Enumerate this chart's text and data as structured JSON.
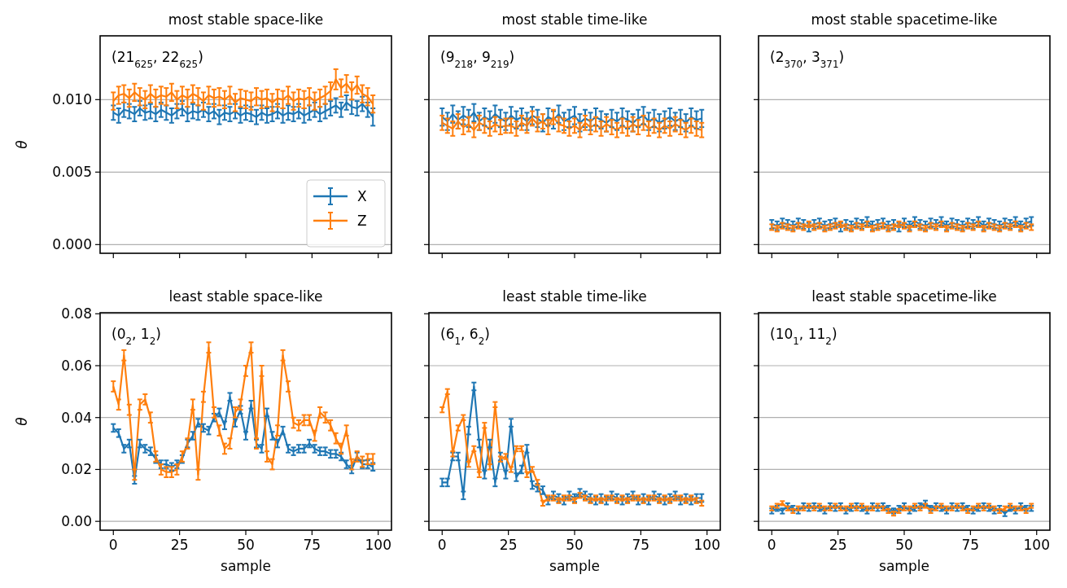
{
  "chart_data": [
    {
      "type": "line",
      "title": "most stable space-like",
      "ylabel": "θ",
      "annotations": [
        "(21$_{625}$, 22$_{625}$)"
      ],
      "x": [
        0,
        2,
        4,
        6,
        8,
        10,
        12,
        14,
        16,
        18,
        20,
        22,
        24,
        26,
        28,
        30,
        32,
        34,
        36,
        38,
        40,
        42,
        44,
        46,
        48,
        50,
        52,
        54,
        56,
        58,
        60,
        62,
        64,
        66,
        68,
        70,
        72,
        74,
        76,
        78,
        80,
        82,
        84,
        86,
        88,
        90,
        92,
        94,
        96,
        98
      ],
      "xlim": [
        -5,
        105
      ],
      "xticks": [
        0,
        25,
        50,
        75,
        100
      ],
      "ylim": [
        -0.0006,
        0.0144
      ],
      "yticks": [
        {
          "value": 0,
          "label": "0.000"
        },
        {
          "value": 0.005,
          "label": "0.005"
        },
        {
          "value": 0.01,
          "label": "0.010"
        }
      ],
      "grid": "y",
      "legend": "bottom right",
      "marker": "none",
      "tick_labels": "y",
      "series": [
        {
          "name": "X",
          "color": "#1f77b4",
          "values": [
            0.0091,
            0.0089,
            0.0093,
            0.0092,
            0.009,
            0.0094,
            0.0091,
            0.0092,
            0.009,
            0.0093,
            0.0091,
            0.0089,
            0.0092,
            0.0094,
            0.009,
            0.0092,
            0.0091,
            0.0093,
            0.009,
            0.0092,
            0.0088,
            0.0091,
            0.009,
            0.0092,
            0.0089,
            0.0091,
            0.009,
            0.0088,
            0.0091,
            0.0089,
            0.009,
            0.0092,
            0.0089,
            0.0091,
            0.009,
            0.0092,
            0.0089,
            0.0091,
            0.0093,
            0.009,
            0.0092,
            0.0094,
            0.0096,
            0.0093,
            0.0098,
            0.0095,
            0.0094,
            0.0097,
            0.0093,
            0.0088
          ],
          "errors": [
            0.0005,
            0.0005,
            0.0005,
            0.0005,
            0.0005,
            0.0005,
            0.0005,
            0.0005,
            0.0005,
            0.0005,
            0.0005,
            0.0005,
            0.0005,
            0.0005,
            0.0005,
            0.0005,
            0.0005,
            0.0005,
            0.0005,
            0.0005,
            0.0005,
            0.0005,
            0.0005,
            0.0005,
            0.0005,
            0.0005,
            0.0005,
            0.0005,
            0.0005,
            0.0005,
            0.0005,
            0.0005,
            0.0005,
            0.0005,
            0.0005,
            0.0005,
            0.0005,
            0.0005,
            0.0005,
            0.0005,
            0.0005,
            0.0005,
            0.0005,
            0.0005,
            0.0005,
            0.0005,
            0.0005,
            0.0005,
            0.0005,
            0.0006
          ]
        },
        {
          "name": "Z",
          "color": "#ff7f0e",
          "values": [
            0.0099,
            0.0103,
            0.0104,
            0.0101,
            0.0105,
            0.0102,
            0.01,
            0.0104,
            0.0101,
            0.0103,
            0.0102,
            0.0105,
            0.01,
            0.0103,
            0.0101,
            0.0104,
            0.0102,
            0.0099,
            0.0103,
            0.0101,
            0.0102,
            0.01,
            0.0103,
            0.0098,
            0.0101,
            0.01,
            0.0099,
            0.0102,
            0.01,
            0.0101,
            0.0098,
            0.0101,
            0.01,
            0.0103,
            0.0099,
            0.0101,
            0.01,
            0.0102,
            0.0099,
            0.0101,
            0.0103,
            0.0106,
            0.0114,
            0.0108,
            0.0111,
            0.0106,
            0.011,
            0.0104,
            0.0102,
            0.0097
          ],
          "errors": [
            0.0006,
            0.0006,
            0.0006,
            0.0006,
            0.0006,
            0.0006,
            0.0006,
            0.0006,
            0.0006,
            0.0006,
            0.0006,
            0.0006,
            0.0006,
            0.0006,
            0.0006,
            0.0006,
            0.0006,
            0.0006,
            0.0006,
            0.0006,
            0.0006,
            0.0006,
            0.0006,
            0.0006,
            0.0006,
            0.0006,
            0.0006,
            0.0006,
            0.0006,
            0.0006,
            0.0006,
            0.0006,
            0.0006,
            0.0006,
            0.0006,
            0.0006,
            0.0006,
            0.0006,
            0.0006,
            0.0006,
            0.0006,
            0.0006,
            0.0007,
            0.0006,
            0.0006,
            0.0006,
            0.0006,
            0.0006,
            0.0006,
            0.0006
          ]
        }
      ]
    },
    {
      "type": "line",
      "title": "most stable time-like",
      "annotations": [
        "(9$_{218}$, 9$_{219}$)"
      ],
      "x": [
        0,
        2,
        4,
        6,
        8,
        10,
        12,
        14,
        16,
        18,
        20,
        22,
        24,
        26,
        28,
        30,
        32,
        34,
        36,
        38,
        40,
        42,
        44,
        46,
        48,
        50,
        52,
        54,
        56,
        58,
        60,
        62,
        64,
        66,
        68,
        70,
        72,
        74,
        76,
        78,
        80,
        82,
        84,
        86,
        88,
        90,
        92,
        94,
        96,
        98
      ],
      "xlim": [
        -5,
        105
      ],
      "xticks": [
        0,
        25,
        50,
        75,
        100
      ],
      "ylim": [
        -0.0006,
        0.0144
      ],
      "yticks": [
        0,
        0.005,
        0.01
      ],
      "grid": "y",
      "marker": "none",
      "tick_labels": false,
      "series": [
        {
          "color": "#1f77b4",
          "values": [
            0.0088,
            0.0085,
            0.009,
            0.0086,
            0.0089,
            0.0087,
            0.0091,
            0.0085,
            0.0088,
            0.0086,
            0.009,
            0.0087,
            0.0085,
            0.0089,
            0.0086,
            0.0088,
            0.0085,
            0.0089,
            0.0087,
            0.0084,
            0.0088,
            0.0086,
            0.009,
            0.0085,
            0.0087,
            0.0089,
            0.0084,
            0.0087,
            0.0085,
            0.0088,
            0.0086,
            0.0084,
            0.0087,
            0.0085,
            0.0088,
            0.0086,
            0.0084,
            0.0087,
            0.0089,
            0.0085,
            0.0087,
            0.0084,
            0.0086,
            0.0088,
            0.0085,
            0.0087,
            0.0084,
            0.0088,
            0.0086,
            0.0087
          ],
          "errors": [
            0.0006,
            0.0006,
            0.0006,
            0.0006,
            0.0006,
            0.0006,
            0.0006,
            0.0006,
            0.0006,
            0.0006,
            0.0006,
            0.0006,
            0.0006,
            0.0006,
            0.0006,
            0.0006,
            0.0006,
            0.0006,
            0.0006,
            0.0006,
            0.0006,
            0.0006,
            0.0006,
            0.0006,
            0.0006,
            0.0006,
            0.0006,
            0.0006,
            0.0006,
            0.0006,
            0.0006,
            0.0006,
            0.0006,
            0.0006,
            0.0006,
            0.0006,
            0.0006,
            0.0006,
            0.0006,
            0.0006,
            0.0006,
            0.0006,
            0.0006,
            0.0006,
            0.0006,
            0.0006,
            0.0006,
            0.0006,
            0.0006,
            0.0006
          ]
        },
        {
          "color": "#ff7f0e",
          "values": [
            0.0084,
            0.0082,
            0.008,
            0.0085,
            0.0081,
            0.0083,
            0.0079,
            0.0084,
            0.0082,
            0.008,
            0.0083,
            0.0081,
            0.0082,
            0.0082,
            0.008,
            0.0084,
            0.0082,
            0.0087,
            0.0083,
            0.0085,
            0.0081,
            0.0088,
            0.0083,
            0.0082,
            0.008,
            0.0082,
            0.0079,
            0.0084,
            0.0081,
            0.0083,
            0.008,
            0.0083,
            0.0081,
            0.0079,
            0.0082,
            0.008,
            0.0083,
            0.0081,
            0.0084,
            0.008,
            0.0082,
            0.0079,
            0.0082,
            0.008,
            0.0083,
            0.0081,
            0.0079,
            0.0082,
            0.008,
            0.0079
          ],
          "errors": [
            0.0005,
            0.0005,
            0.0005,
            0.0005,
            0.0005,
            0.0005,
            0.0005,
            0.0005,
            0.0005,
            0.0005,
            0.0005,
            0.0005,
            0.0005,
            0.0005,
            0.0005,
            0.0005,
            0.0005,
            0.0005,
            0.0005,
            0.0005,
            0.0005,
            0.0005,
            0.0005,
            0.0005,
            0.0005,
            0.0005,
            0.0005,
            0.0005,
            0.0005,
            0.0005,
            0.0005,
            0.0005,
            0.0005,
            0.0005,
            0.0005,
            0.0005,
            0.0005,
            0.0005,
            0.0005,
            0.0005,
            0.0005,
            0.0005,
            0.0005,
            0.0005,
            0.0005,
            0.0005,
            0.0005,
            0.0005,
            0.0005,
            0.0005
          ]
        }
      ]
    },
    {
      "type": "line",
      "title": "most stable spacetime-like",
      "annotations": [
        "(2$_{370}$, 3$_{371}$)"
      ],
      "x": [
        0,
        2,
        4,
        6,
        8,
        10,
        12,
        14,
        16,
        18,
        20,
        22,
        24,
        26,
        28,
        30,
        32,
        34,
        36,
        38,
        40,
        42,
        44,
        46,
        48,
        50,
        52,
        54,
        56,
        58,
        60,
        62,
        64,
        66,
        68,
        70,
        72,
        74,
        76,
        78,
        80,
        82,
        84,
        86,
        88,
        90,
        92,
        94,
        96,
        98
      ],
      "xlim": [
        -5,
        105
      ],
      "xticks": [
        0,
        25,
        50,
        75,
        100
      ],
      "ylim": [
        -0.0006,
        0.0144
      ],
      "yticks": [
        0,
        0.005,
        0.01
      ],
      "grid": "y",
      "marker": "none",
      "tick_labels": false,
      "series": [
        {
          "color": "#1f77b4",
          "values": [
            0.0014,
            0.0013,
            0.0015,
            0.0014,
            0.0013,
            0.0015,
            0.0014,
            0.0012,
            0.0014,
            0.0015,
            0.0013,
            0.0014,
            0.0015,
            0.0012,
            0.0014,
            0.0013,
            0.0015,
            0.0014,
            0.0016,
            0.0013,
            0.0014,
            0.0015,
            0.0013,
            0.0014,
            0.0012,
            0.0015,
            0.0013,
            0.0016,
            0.0014,
            0.0013,
            0.0015,
            0.0014,
            0.0016,
            0.0013,
            0.0015,
            0.0014,
            0.0013,
            0.0015,
            0.0014,
            0.0016,
            0.0013,
            0.0015,
            0.0014,
            0.0013,
            0.0015,
            0.0014,
            0.0016,
            0.0013,
            0.0015,
            0.0016
          ],
          "errors": [
            0.0003,
            0.0003,
            0.0003,
            0.0003,
            0.0003,
            0.0003,
            0.0003,
            0.0003,
            0.0003,
            0.0003,
            0.0003,
            0.0003,
            0.0003,
            0.0003,
            0.0003,
            0.0003,
            0.0003,
            0.0003,
            0.0003,
            0.0003,
            0.0003,
            0.0003,
            0.0003,
            0.0003,
            0.0003,
            0.0003,
            0.0003,
            0.0003,
            0.0003,
            0.0003,
            0.0003,
            0.0003,
            0.0003,
            0.0003,
            0.0003,
            0.0003,
            0.0003,
            0.0003,
            0.0003,
            0.0003,
            0.0003,
            0.0003,
            0.0003,
            0.0003,
            0.0003,
            0.0003,
            0.0003,
            0.0003,
            0.0003,
            0.0003
          ]
        },
        {
          "color": "#ff7f0e",
          "values": [
            0.0012,
            0.0011,
            0.0013,
            0.0012,
            0.0011,
            0.0013,
            0.0012,
            0.0014,
            0.0012,
            0.0013,
            0.0011,
            0.0012,
            0.0013,
            0.0014,
            0.0012,
            0.0011,
            0.0013,
            0.0012,
            0.0014,
            0.0011,
            0.0012,
            0.0013,
            0.0011,
            0.0012,
            0.0014,
            0.0013,
            0.0011,
            0.0014,
            0.0012,
            0.0011,
            0.0013,
            0.0012,
            0.0014,
            0.0011,
            0.0013,
            0.0012,
            0.0011,
            0.0013,
            0.0012,
            0.0014,
            0.0011,
            0.0013,
            0.0012,
            0.0011,
            0.0013,
            0.0012,
            0.0014,
            0.0011,
            0.0013,
            0.0012
          ],
          "errors": [
            0.0002,
            0.0002,
            0.0002,
            0.0002,
            0.0002,
            0.0002,
            0.0002,
            0.0002,
            0.0002,
            0.0002,
            0.0002,
            0.0002,
            0.0002,
            0.0002,
            0.0002,
            0.0002,
            0.0002,
            0.0002,
            0.0002,
            0.0002,
            0.0002,
            0.0002,
            0.0002,
            0.0002,
            0.0002,
            0.0002,
            0.0002,
            0.0002,
            0.0002,
            0.0002,
            0.0002,
            0.0002,
            0.0002,
            0.0002,
            0.0002,
            0.0002,
            0.0002,
            0.0002,
            0.0002,
            0.0002,
            0.0002,
            0.0002,
            0.0002,
            0.0002,
            0.0002,
            0.0002,
            0.0002,
            0.0002,
            0.0002,
            0.0002
          ]
        }
      ]
    },
    {
      "type": "line",
      "title": "least stable space-like",
      "xlabel": "sample",
      "ylabel": "θ",
      "annotations": [
        "(0$_{2}$, 1$_{2}$)"
      ],
      "x": [
        0,
        2,
        4,
        6,
        8,
        10,
        12,
        14,
        16,
        18,
        20,
        22,
        24,
        26,
        28,
        30,
        32,
        34,
        36,
        38,
        40,
        42,
        44,
        46,
        48,
        50,
        52,
        54,
        56,
        58,
        60,
        62,
        64,
        66,
        68,
        70,
        72,
        74,
        76,
        78,
        80,
        82,
        84,
        86,
        88,
        90,
        92,
        94,
        96,
        98
      ],
      "xlim": [
        -5,
        105
      ],
      "xticks": [
        0,
        25,
        50,
        75,
        100
      ],
      "ylim": [
        -0.0034,
        0.0804
      ],
      "yticks": [
        {
          "value": 0,
          "label": "0.00"
        },
        {
          "value": 0.02,
          "label": "0.02"
        },
        {
          "value": 0.04,
          "label": "0.04"
        },
        {
          "value": 0.06,
          "label": "0.06"
        },
        {
          "value": 0.08,
          "label": "0.08"
        }
      ],
      "grid": "y",
      "marker": "none",
      "series": [
        {
          "color": "#1f77b4",
          "values": [
            0.036,
            0.034,
            0.028,
            0.03,
            0.016,
            0.03,
            0.028,
            0.027,
            0.024,
            0.022,
            0.022,
            0.021,
            0.022,
            0.024,
            0.03,
            0.033,
            0.038,
            0.036,
            0.035,
            0.04,
            0.042,
            0.037,
            0.048,
            0.038,
            0.043,
            0.033,
            0.045,
            0.03,
            0.028,
            0.042,
            0.033,
            0.03,
            0.035,
            0.028,
            0.027,
            0.028,
            0.028,
            0.03,
            0.028,
            0.027,
            0.027,
            0.026,
            0.026,
            0.025,
            0.022,
            0.02,
            0.025,
            0.022,
            0.022,
            0.021
          ],
          "errors": [
            0.0015,
            0.0015,
            0.0015,
            0.0015,
            0.0015,
            0.0015,
            0.0015,
            0.0015,
            0.0015,
            0.0015,
            0.0015,
            0.0015,
            0.0015,
            0.0015,
            0.0015,
            0.0015,
            0.0015,
            0.0015,
            0.0015,
            0.0015,
            0.0015,
            0.0015,
            0.0015,
            0.0015,
            0.0015,
            0.0015,
            0.0015,
            0.0015,
            0.0015,
            0.0015,
            0.0015,
            0.0015,
            0.0015,
            0.0015,
            0.0015,
            0.0015,
            0.0015,
            0.0015,
            0.0015,
            0.0015,
            0.0015,
            0.0015,
            0.0015,
            0.0015,
            0.0015,
            0.0015,
            0.0015,
            0.0015,
            0.0015,
            0.0015
          ]
        },
        {
          "color": "#ff7f0e",
          "values": [
            0.052,
            0.045,
            0.064,
            0.043,
            0.018,
            0.045,
            0.047,
            0.04,
            0.025,
            0.02,
            0.019,
            0.019,
            0.02,
            0.025,
            0.03,
            0.045,
            0.018,
            0.048,
            0.067,
            0.042,
            0.035,
            0.028,
            0.03,
            0.042,
            0.045,
            0.058,
            0.067,
            0.03,
            0.058,
            0.025,
            0.022,
            0.035,
            0.064,
            0.052,
            0.038,
            0.037,
            0.039,
            0.039,
            0.033,
            0.042,
            0.04,
            0.037,
            0.032,
            0.028,
            0.035,
            0.022,
            0.025,
            0.023,
            0.024,
            0.024
          ],
          "errors": [
            0.002,
            0.002,
            0.002,
            0.002,
            0.002,
            0.002,
            0.002,
            0.002,
            0.002,
            0.002,
            0.002,
            0.002,
            0.002,
            0.002,
            0.002,
            0.002,
            0.002,
            0.002,
            0.002,
            0.002,
            0.002,
            0.002,
            0.002,
            0.002,
            0.002,
            0.002,
            0.002,
            0.002,
            0.002,
            0.002,
            0.002,
            0.002,
            0.002,
            0.002,
            0.002,
            0.002,
            0.002,
            0.002,
            0.002,
            0.002,
            0.002,
            0.002,
            0.002,
            0.002,
            0.002,
            0.002,
            0.002,
            0.002,
            0.002,
            0.002
          ]
        }
      ]
    },
    {
      "type": "line",
      "title": "least stable time-like",
      "xlabel": "sample",
      "annotations": [
        "(6$_{1}$, 6$_{2}$)"
      ],
      "x": [
        0,
        2,
        4,
        6,
        8,
        10,
        12,
        14,
        16,
        18,
        20,
        22,
        24,
        26,
        28,
        30,
        32,
        34,
        36,
        38,
        40,
        42,
        44,
        46,
        48,
        50,
        52,
        54,
        56,
        58,
        60,
        62,
        64,
        66,
        68,
        70,
        72,
        74,
        76,
        78,
        80,
        82,
        84,
        86,
        88,
        90,
        92,
        94,
        96,
        98
      ],
      "xlim": [
        -5,
        105
      ],
      "xticks": [
        0,
        25,
        50,
        75,
        100
      ],
      "ylim": [
        -0.0034,
        0.0804
      ],
      "yticks": [
        0,
        0.02,
        0.04,
        0.06,
        0.08
      ],
      "grid": "y",
      "marker": "none",
      "tick_labels": "x",
      "series": [
        {
          "color": "#1f77b4",
          "values": [
            0.015,
            0.015,
            0.025,
            0.025,
            0.01,
            0.035,
            0.052,
            0.03,
            0.018,
            0.03,
            0.015,
            0.025,
            0.018,
            0.038,
            0.017,
            0.02,
            0.028,
            0.014,
            0.013,
            0.012,
            0.008,
            0.01,
            0.009,
            0.008,
            0.01,
            0.009,
            0.011,
            0.01,
            0.009,
            0.008,
            0.009,
            0.008,
            0.01,
            0.009,
            0.008,
            0.009,
            0.01,
            0.008,
            0.009,
            0.008,
            0.01,
            0.009,
            0.008,
            0.009,
            0.01,
            0.008,
            0.009,
            0.008,
            0.009,
            0.009
          ],
          "errors": [
            0.0015,
            0.0015,
            0.0015,
            0.0015,
            0.0015,
            0.0015,
            0.0015,
            0.0015,
            0.0015,
            0.0015,
            0.0015,
            0.0015,
            0.0015,
            0.0015,
            0.0015,
            0.0015,
            0.0015,
            0.0015,
            0.0015,
            0.0015,
            0.0015,
            0.0015,
            0.0015,
            0.0015,
            0.0015,
            0.0015,
            0.0015,
            0.0015,
            0.0015,
            0.0015,
            0.0015,
            0.0015,
            0.0015,
            0.0015,
            0.0015,
            0.0015,
            0.0015,
            0.0015,
            0.0015,
            0.0015,
            0.0015,
            0.0015,
            0.0015,
            0.0015,
            0.0015,
            0.0015,
            0.0015,
            0.0015,
            0.0015,
            0.0015
          ]
        },
        {
          "color": "#ff7f0e",
          "values": [
            0.043,
            0.05,
            0.026,
            0.036,
            0.04,
            0.022,
            0.028,
            0.018,
            0.037,
            0.021,
            0.045,
            0.024,
            0.025,
            0.02,
            0.028,
            0.028,
            0.018,
            0.02,
            0.015,
            0.007,
            0.009,
            0.009,
            0.008,
            0.009,
            0.009,
            0.008,
            0.01,
            0.009,
            0.008,
            0.009,
            0.008,
            0.009,
            0.009,
            0.008,
            0.009,
            0.008,
            0.009,
            0.009,
            0.008,
            0.009,
            0.009,
            0.008,
            0.009,
            0.008,
            0.009,
            0.009,
            0.008,
            0.009,
            0.008,
            0.007
          ],
          "errors": [
            0.001,
            0.001,
            0.001,
            0.001,
            0.001,
            0.001,
            0.001,
            0.001,
            0.001,
            0.001,
            0.001,
            0.001,
            0.001,
            0.001,
            0.001,
            0.001,
            0.001,
            0.001,
            0.001,
            0.001,
            0.001,
            0.001,
            0.001,
            0.001,
            0.001,
            0.001,
            0.001,
            0.001,
            0.001,
            0.001,
            0.001,
            0.001,
            0.001,
            0.001,
            0.001,
            0.001,
            0.001,
            0.001,
            0.001,
            0.001,
            0.001,
            0.001,
            0.001,
            0.001,
            0.001,
            0.001,
            0.001,
            0.001,
            0.001,
            0.001
          ]
        }
      ]
    },
    {
      "type": "line",
      "title": "least stable spacetime-like",
      "xlabel": "sample",
      "annotations": [
        "(10$_{1}$, 11$_{2}$)"
      ],
      "x": [
        0,
        2,
        4,
        6,
        8,
        10,
        12,
        14,
        16,
        18,
        20,
        22,
        24,
        26,
        28,
        30,
        32,
        34,
        36,
        38,
        40,
        42,
        44,
        46,
        48,
        50,
        52,
        54,
        56,
        58,
        60,
        62,
        64,
        66,
        68,
        70,
        72,
        74,
        76,
        78,
        80,
        82,
        84,
        86,
        88,
        90,
        92,
        94,
        96,
        98
      ],
      "xlim": [
        -5,
        105
      ],
      "xticks": [
        0,
        25,
        50,
        75,
        100
      ],
      "ylim": [
        -0.0034,
        0.0804
      ],
      "yticks": [
        0,
        0.02,
        0.04,
        0.06,
        0.08
      ],
      "grid": "y",
      "marker": "none",
      "tick_labels": "x",
      "series": [
        {
          "color": "#1f77b4",
          "values": [
            0.004,
            0.005,
            0.004,
            0.006,
            0.005,
            0.004,
            0.006,
            0.005,
            0.006,
            0.005,
            0.004,
            0.006,
            0.005,
            0.006,
            0.004,
            0.005,
            0.006,
            0.005,
            0.004,
            0.006,
            0.005,
            0.006,
            0.005,
            0.004,
            0.005,
            0.006,
            0.004,
            0.005,
            0.006,
            0.007,
            0.005,
            0.006,
            0.005,
            0.004,
            0.006,
            0.005,
            0.006,
            0.005,
            0.004,
            0.005,
            0.006,
            0.005,
            0.004,
            0.005,
            0.003,
            0.005,
            0.004,
            0.006,
            0.005,
            0.005
          ],
          "errors": [
            0.001,
            0.001,
            0.001,
            0.001,
            0.001,
            0.001,
            0.001,
            0.001,
            0.001,
            0.001,
            0.001,
            0.001,
            0.001,
            0.001,
            0.001,
            0.001,
            0.001,
            0.001,
            0.001,
            0.001,
            0.001,
            0.001,
            0.001,
            0.001,
            0.001,
            0.001,
            0.001,
            0.001,
            0.001,
            0.001,
            0.001,
            0.001,
            0.001,
            0.001,
            0.001,
            0.001,
            0.001,
            0.001,
            0.001,
            0.001,
            0.001,
            0.001,
            0.001,
            0.001,
            0.001,
            0.001,
            0.001,
            0.001,
            0.001,
            0.001
          ]
        },
        {
          "color": "#ff7f0e",
          "values": [
            0.005,
            0.006,
            0.007,
            0.005,
            0.004,
            0.005,
            0.005,
            0.006,
            0.005,
            0.006,
            0.005,
            0.005,
            0.006,
            0.005,
            0.005,
            0.006,
            0.005,
            0.006,
            0.005,
            0.005,
            0.006,
            0.005,
            0.004,
            0.003,
            0.004,
            0.005,
            0.005,
            0.006,
            0.005,
            0.006,
            0.004,
            0.005,
            0.006,
            0.005,
            0.005,
            0.006,
            0.005,
            0.004,
            0.005,
            0.006,
            0.005,
            0.006,
            0.005,
            0.004,
            0.005,
            0.006,
            0.005,
            0.005,
            0.004,
            0.006
          ],
          "errors": [
            0.0008,
            0.0008,
            0.0008,
            0.0008,
            0.0008,
            0.0008,
            0.0008,
            0.0008,
            0.0008,
            0.0008,
            0.0008,
            0.0008,
            0.0008,
            0.0008,
            0.0008,
            0.0008,
            0.0008,
            0.0008,
            0.0008,
            0.0008,
            0.0008,
            0.0008,
            0.0008,
            0.0008,
            0.0008,
            0.0008,
            0.0008,
            0.0008,
            0.0008,
            0.0008,
            0.0008,
            0.0008,
            0.0008,
            0.0008,
            0.0008,
            0.0008,
            0.0008,
            0.0008,
            0.0008,
            0.0008,
            0.0008,
            0.0008,
            0.0008,
            0.0008,
            0.0008,
            0.0008,
            0.0008,
            0.0008,
            0.0008,
            0.0008
          ]
        }
      ]
    }
  ]
}
